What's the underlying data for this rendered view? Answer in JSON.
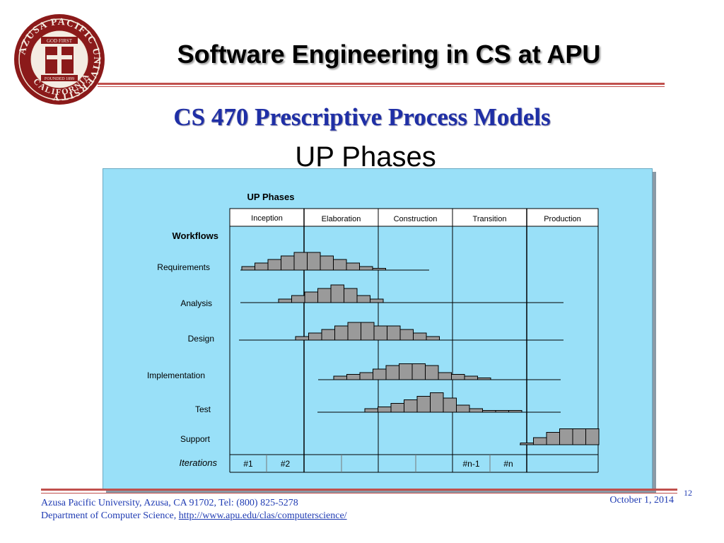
{
  "header": {
    "title": "Software Engineering in CS at APU",
    "logo": {
      "name": "AZUSA PACIFIC UNIVERSITY",
      "top_banner": "GOD FIRST",
      "founded": "FOUNDED 1899",
      "state": "CALIFORNIA"
    }
  },
  "slide": {
    "subtitle": "CS 470 Prescriptive Process Models",
    "heading": "UP Phases"
  },
  "diagram": {
    "title": "UP Phases",
    "phases": [
      "Inception",
      "Elaboration",
      "Construction",
      "Transition",
      "Production"
    ],
    "workflows_label": "Workflows",
    "workflows": [
      {
        "name": "Requirements",
        "effort": [
          1,
          2,
          3,
          4,
          5,
          5,
          4,
          3,
          2,
          1,
          0.5
        ]
      },
      {
        "name": "Analysis",
        "effort": [
          1,
          2,
          3,
          4,
          5,
          4,
          2,
          1
        ]
      },
      {
        "name": "Design",
        "effort": [
          1,
          2,
          3,
          4,
          5,
          5,
          4,
          4,
          3,
          2,
          1
        ]
      },
      {
        "name": "Implementation",
        "effort": [
          1,
          1.5,
          2,
          3,
          4,
          4.5,
          4.5,
          4,
          2,
          1.5,
          1,
          0.5
        ]
      },
      {
        "name": "Test",
        "effort": [
          1,
          1.5,
          2.5,
          3.5,
          4.5,
          5.5,
          4,
          2,
          1,
          0.5,
          0.5,
          0.5
        ]
      },
      {
        "name": "Support",
        "effort": [
          0.5,
          2,
          3.5,
          4.5,
          4.5,
          4.5
        ]
      }
    ],
    "iterations_label": "Iterations",
    "iterations": [
      "#1",
      "#2",
      "",
      "",
      "",
      "",
      "#n-1",
      "#n",
      ""
    ]
  },
  "footer": {
    "address": "Azusa Pacific University, Azusa, CA 91702, Tel:  (800) 825-5278",
    "department": "Department of Computer Science, ",
    "link": "http://www.apu.edu/clas/computerscience/",
    "date": "October 1, 2014",
    "page": "12"
  },
  "colors": {
    "accent_rule": "#c0504d",
    "subtitle": "#1f2fa6",
    "panel": "#99e0f8",
    "bars": "#9a9a9a",
    "footer_text": "#1f3bb3",
    "seal": "#8b1a1a"
  }
}
